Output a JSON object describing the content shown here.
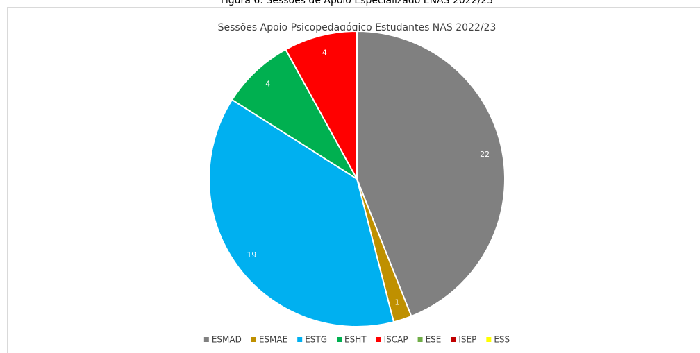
{
  "caption": "Figura 6: Sessões de Apoio Especializado ENAS 2022/23",
  "chart_data": {
    "type": "pie",
    "title": "Sessões Apoio Psicopedagógico Estudantes NAS 2022/23",
    "categories": [
      "ESMAD",
      "ESMAE",
      "ESTG",
      "ESHT",
      "ISCAP",
      "ESE",
      "ISEP",
      "ESS"
    ],
    "values": [
      22,
      1,
      19,
      4,
      4,
      0,
      0,
      0
    ],
    "colors": [
      "#808080",
      "#bf9000",
      "#00b0f0",
      "#00b050",
      "#ff0000",
      "#70ad47",
      "#c00000",
      "#ffff00"
    ],
    "legend": "bottom"
  }
}
